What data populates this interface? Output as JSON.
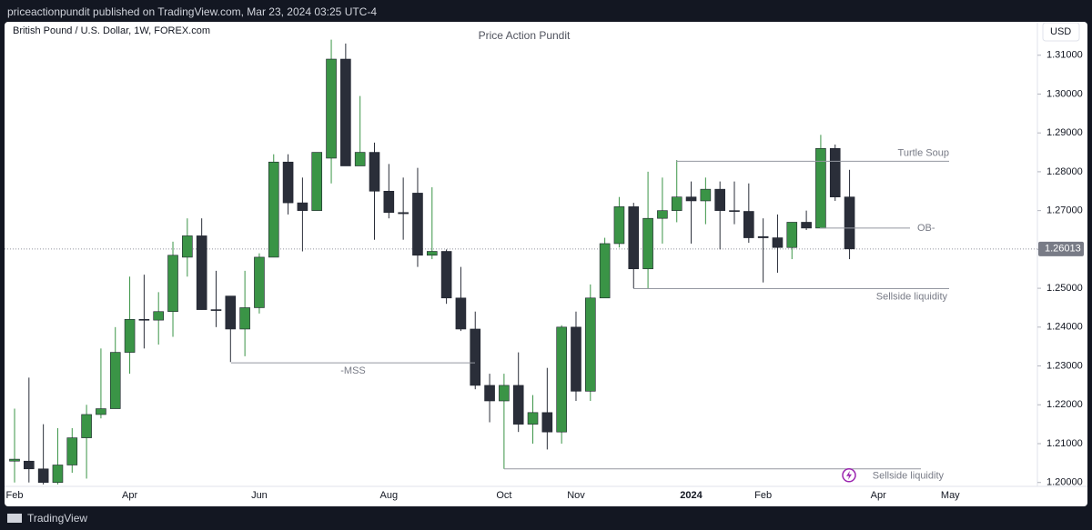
{
  "header": "priceactionpundit published on TradingView.com, Mar 23, 2024 03:25 UTC-4",
  "footer": "TradingView",
  "chart_data": {
    "type": "candlestick",
    "title": "Price Action Pundit",
    "symbol": "British Pound / U.S. Dollar, 1W, FOREX.com",
    "currency": "USD",
    "categories": [
      "Feb",
      null,
      null,
      null,
      null,
      null,
      null,
      null,
      "Apr",
      null,
      null,
      null,
      null,
      null,
      null,
      null,
      null,
      "Jun",
      null,
      null,
      null,
      null,
      null,
      null,
      null,
      null,
      "Aug",
      null,
      null,
      null,
      null,
      null,
      null,
      null,
      "Oct",
      null,
      null,
      null,
      null,
      "Nov",
      null,
      null,
      null,
      null,
      null,
      null,
      null,
      "2024",
      null,
      null,
      null,
      null,
      "Feb",
      null,
      null,
      null,
      null,
      null,
      null,
      null,
      "Apr",
      null,
      null,
      null,
      null,
      "May"
    ],
    "open": [
      1.2055,
      1.2055,
      1.2035,
      1.2,
      1.2045,
      1.2115,
      1.2175,
      1.219,
      1.2335,
      1.242,
      1.2418,
      1.244,
      1.258,
      1.2635,
      1.2445,
      1.248,
      1.2395,
      1.245,
      1.258,
      1.2825,
      1.272,
      1.27,
      1.2835,
      1.309,
      1.2815,
      1.285,
      1.275,
      1.2695,
      1.2745,
      1.2585,
      1.2595,
      1.2475,
      1.2395,
      1.225,
      1.221,
      1.225,
      1.215,
      1.218,
      1.213,
      1.24,
      1.2235,
      1.2475,
      1.2615,
      1.271,
      1.255,
      1.268,
      1.27,
      1.2735,
      1.2725,
      1.2755,
      1.27,
      1.2698,
      1.2633,
      1.263,
      1.2605,
      1.267,
      1.2655,
      1.286,
      1.2735,
      null,
      null,
      null,
      null,
      null,
      null,
      null
    ],
    "high": [
      1.219,
      1.227,
      1.215,
      1.214,
      1.214,
      1.22,
      1.2345,
      1.24,
      1.253,
      1.2535,
      1.249,
      1.262,
      1.268,
      1.268,
      1.2545,
      1.248,
      1.2545,
      1.259,
      1.2845,
      1.2845,
      1.2785,
      1.285,
      1.314,
      1.313,
      1.2995,
      1.2875,
      1.282,
      1.2785,
      1.281,
      1.276,
      1.26,
      1.2555,
      1.244,
      1.228,
      1.228,
      1.2335,
      1.2225,
      1.2295,
      1.2405,
      1.244,
      1.251,
      1.263,
      1.2735,
      1.272,
      1.28,
      1.2785,
      1.283,
      1.2775,
      1.2785,
      1.2775,
      1.2775,
      1.277,
      1.268,
      1.269,
      1.267,
      1.27,
      1.2895,
      1.287,
      1.2805,
      null,
      null,
      null,
      null,
      null,
      null,
      null
    ],
    "low": [
      1.2,
      1.2,
      1.1995,
      1.1995,
      1.2025,
      1.201,
      1.2165,
      1.219,
      1.228,
      1.2345,
      1.2355,
      1.2375,
      1.253,
      1.2445,
      1.24,
      1.231,
      1.2325,
      1.2435,
      1.258,
      1.269,
      1.2595,
      1.27,
      1.277,
      1.2815,
      1.2815,
      1.2625,
      1.268,
      1.2625,
      1.2555,
      1.2575,
      1.246,
      1.239,
      1.224,
      1.2155,
      1.2035,
      1.213,
      1.21,
      1.2085,
      1.21,
      1.221,
      1.221,
      1.2475,
      1.2605,
      1.25,
      1.25,
      1.2615,
      1.267,
      1.2615,
      1.2665,
      1.26,
      1.2665,
      1.2617,
      1.2515,
      1.254,
      1.2575,
      1.265,
      1.2655,
      1.2725,
      1.2575,
      null,
      null,
      null,
      null,
      null,
      null,
      null
    ],
    "close": [
      1.206,
      1.2035,
      1.2,
      1.2045,
      1.2115,
      1.2175,
      1.219,
      1.2335,
      1.242,
      1.2418,
      1.244,
      1.2585,
      1.2635,
      1.2445,
      1.2443,
      1.2395,
      1.245,
      1.258,
      1.2825,
      1.272,
      1.27,
      1.285,
      1.309,
      1.2815,
      1.285,
      1.275,
      1.2695,
      1.2692,
      1.2585,
      1.2595,
      1.2475,
      1.2395,
      1.225,
      1.221,
      1.225,
      1.215,
      1.218,
      1.213,
      1.24,
      1.2235,
      1.2475,
      1.2615,
      1.271,
      1.255,
      1.268,
      1.27,
      1.2735,
      1.2725,
      1.2755,
      1.27,
      1.2698,
      1.263,
      1.263,
      1.2605,
      1.267,
      1.2655,
      1.286,
      1.2735,
      1.26013,
      null,
      null,
      null,
      null,
      null,
      null,
      null
    ],
    "up_color": "#3a9446",
    "down_color": "#2a2e39",
    "ylim": [
      1.199,
      1.3186
    ],
    "yticks": [
      {
        "value": 1.2,
        "label": "1.20000"
      },
      {
        "value": 1.21,
        "label": "1.21000"
      },
      {
        "value": 1.22,
        "label": "1.22000"
      },
      {
        "value": 1.23,
        "label": "1.23000"
      },
      {
        "value": 1.24,
        "label": "1.24000"
      },
      {
        "value": 1.25,
        "label": "1.25000"
      },
      {
        "value": 1.26,
        "label": "1.26000"
      },
      {
        "value": 1.27,
        "label": "1.27000"
      },
      {
        "value": 1.28,
        "label": "1.28000"
      },
      {
        "value": 1.29,
        "label": "1.29000"
      },
      {
        "value": 1.3,
        "label": "1.30000"
      },
      {
        "value": 1.31,
        "label": "1.31000"
      }
    ],
    "last_price": 1.26013,
    "annotations": [
      {
        "text": "Turtle Soup",
        "level": 1.2827
      },
      {
        "text": "OB-",
        "level": 1.2655
      },
      {
        "text": "Sellside liquidity",
        "level": 1.2499
      },
      {
        "text": "-MSS",
        "level": 1.2308
      },
      {
        "text": "Sellside liquidity",
        "level": 1.2035
      }
    ]
  }
}
